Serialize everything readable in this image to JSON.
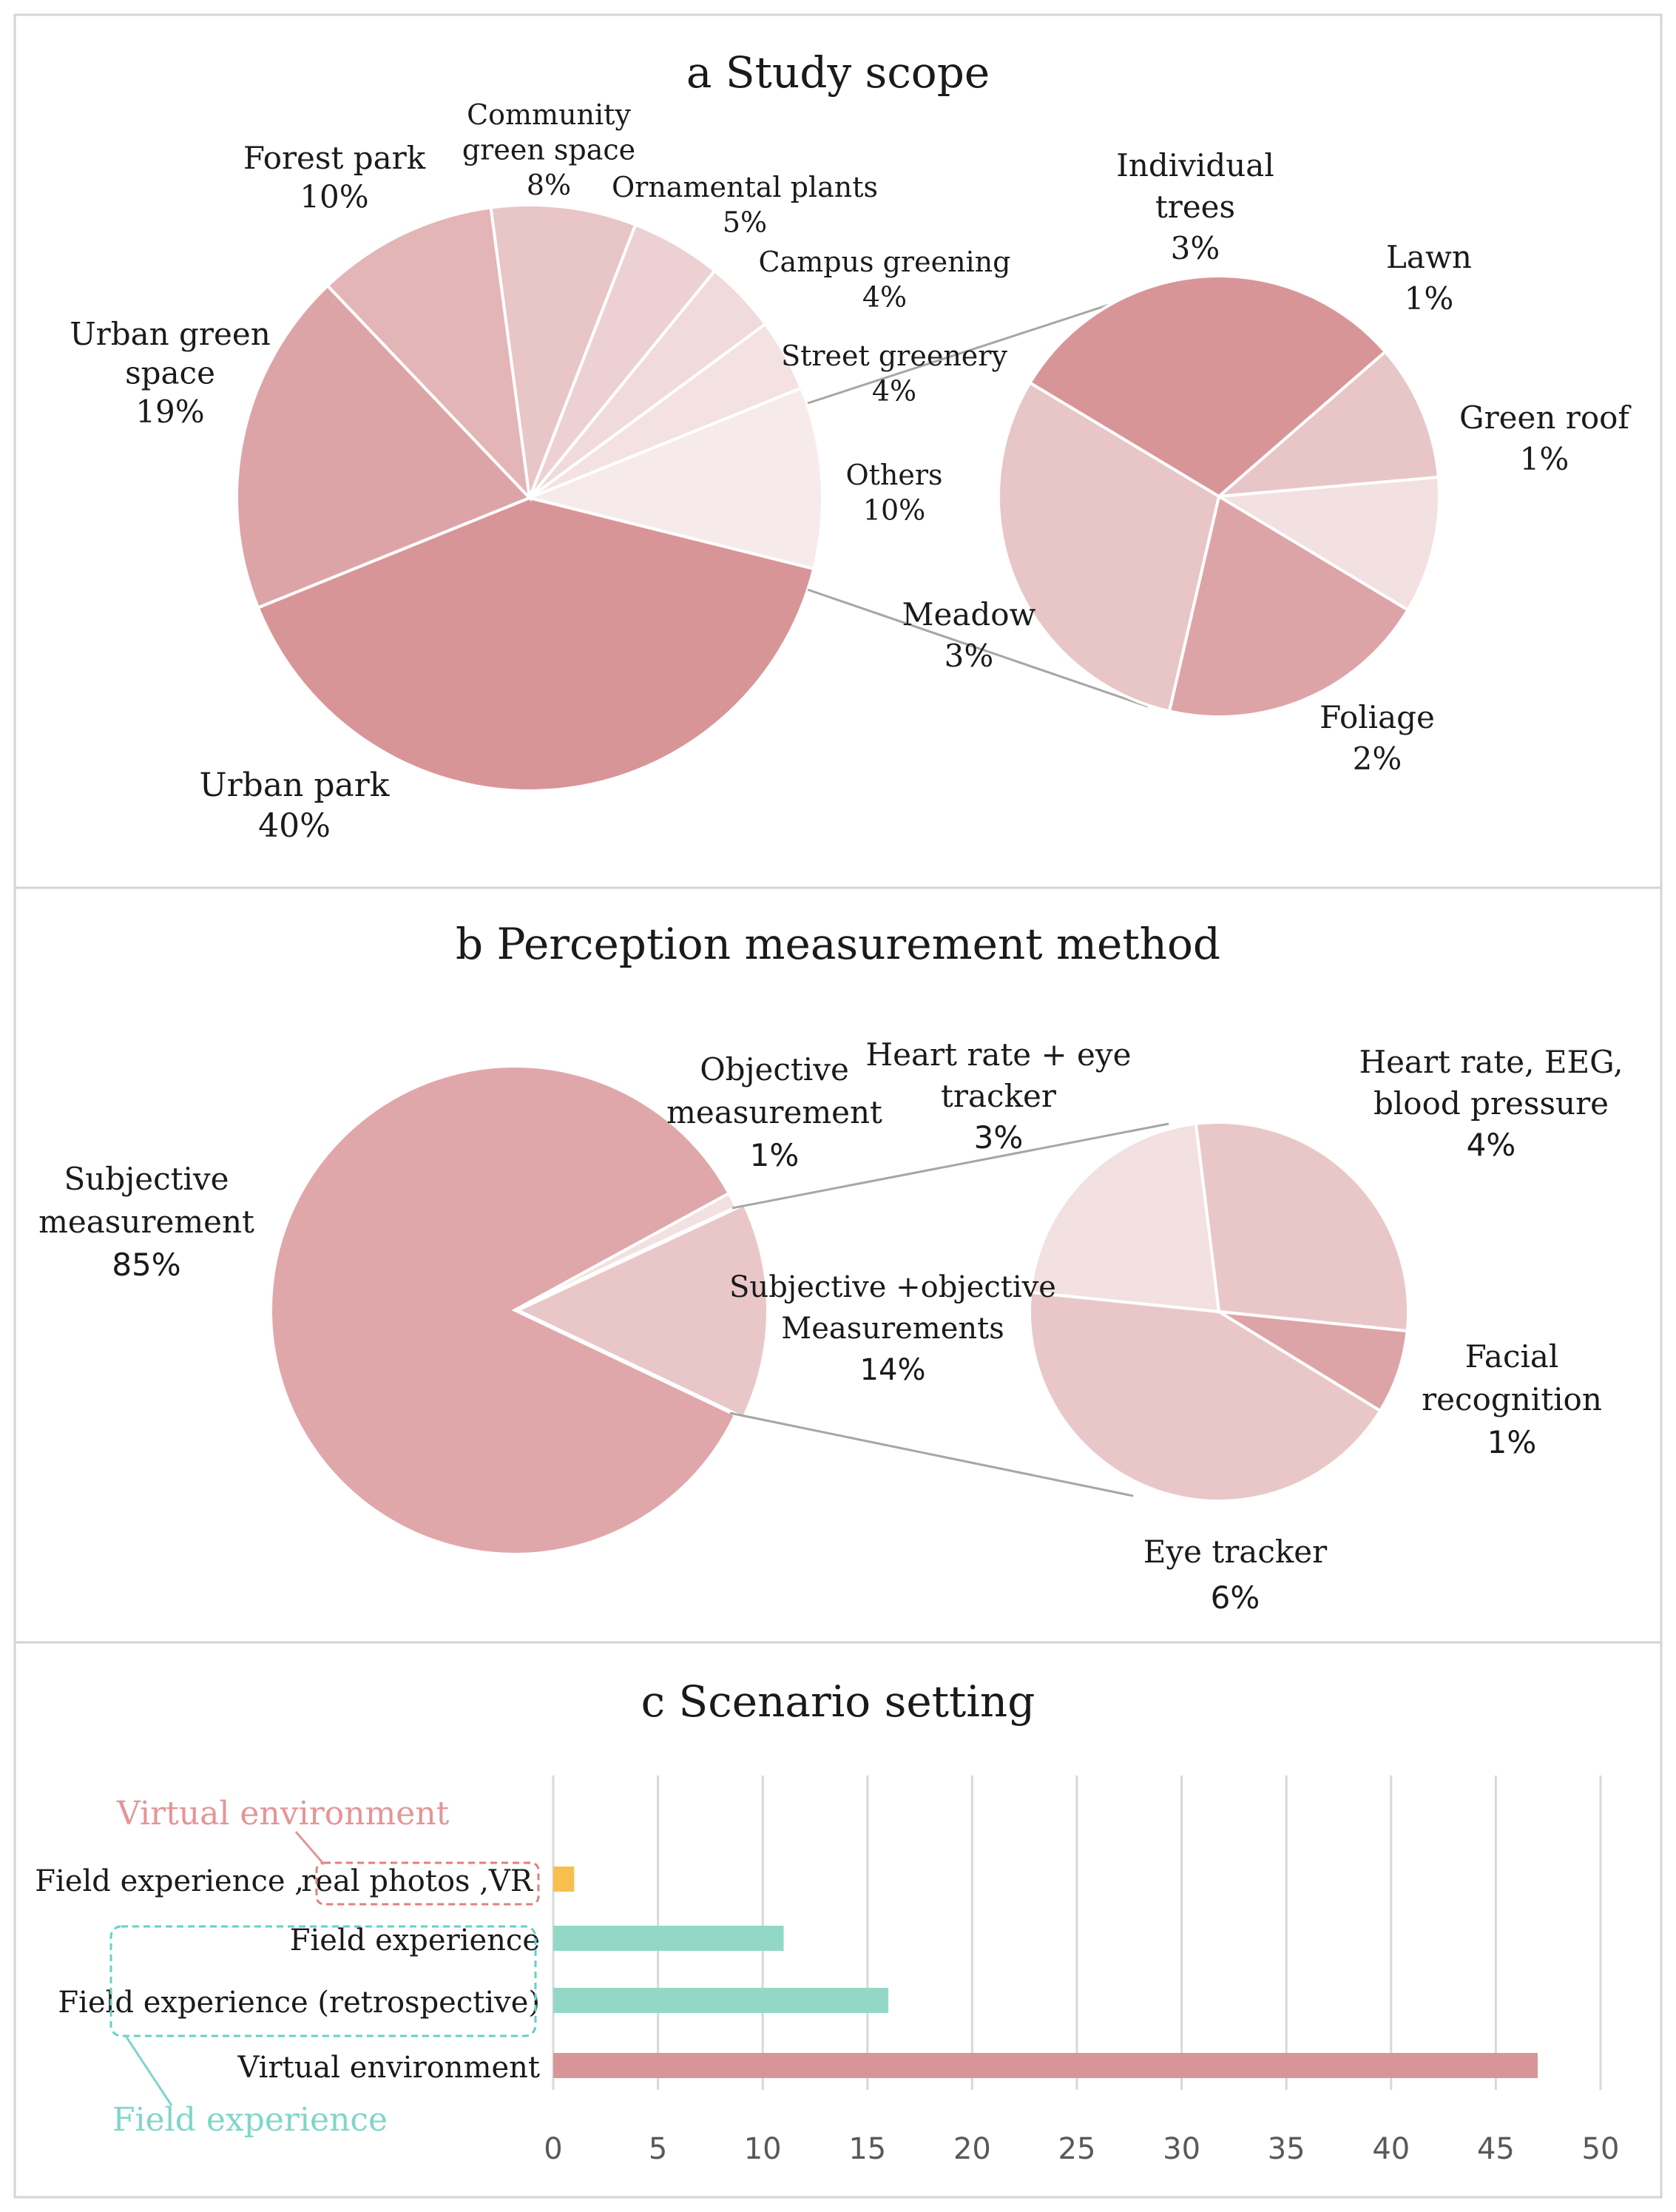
{
  "chart_data": [
    {
      "type": "pie",
      "title": "a Study scope",
      "slices": [
        {
          "label": [
            "Urban park"
          ],
          "value": "40%",
          "pct": 40,
          "color": "#d89598"
        },
        {
          "label": [
            "Urban green",
            "space"
          ],
          "value": "19%",
          "pct": 19,
          "color": "#dda4a7"
        },
        {
          "label": [
            "Forest park"
          ],
          "value": "10%",
          "pct": 10,
          "color": "#e3b5b7"
        },
        {
          "label": [
            "Community",
            "green space"
          ],
          "value": "8%",
          "pct": 8,
          "color": "#e8c5c6"
        },
        {
          "label": [
            "Ornamental plants"
          ],
          "value": "5%",
          "pct": 5,
          "color": "#edd1d2"
        },
        {
          "label": [
            "Campus greening"
          ],
          "value": "4%",
          "pct": 4,
          "color": "#f1dadb"
        },
        {
          "label": [
            "Street greenery"
          ],
          "value": "4%",
          "pct": 4,
          "color": "#f4e2e3"
        },
        {
          "label": [
            "Others"
          ],
          "value": "10%",
          "pct": 10,
          "color": "#f7eaea"
        }
      ],
      "breakdown": [
        {
          "label": [
            "Individual",
            "trees"
          ],
          "value": "3%",
          "pct": 3,
          "color": "#d89598"
        },
        {
          "label": [
            "Lawn"
          ],
          "value": "1%",
          "pct": 1,
          "color": "#e8c5c6"
        },
        {
          "label": [
            "Green roof"
          ],
          "value": "1%",
          "pct": 1,
          "color": "#f3e0e0"
        },
        {
          "label": [
            "Foliage"
          ],
          "value": "2%",
          "pct": 2,
          "color": "#dda4a7"
        },
        {
          "label": [
            "Meadow"
          ],
          "value": "3%",
          "pct": 3,
          "color": "#e8c5c6"
        }
      ]
    },
    {
      "type": "pie",
      "title": "b Perception measurement method",
      "slices": [
        {
          "label": [
            "Subjective",
            "measurement"
          ],
          "value": "85%",
          "pct": 85,
          "color": "#e0a7aa"
        },
        {
          "label": [
            "Objective",
            "measurement"
          ],
          "value": "1%",
          "pct": 1,
          "color": "#f3e0e0"
        },
        {
          "label": [
            "Subjective +objective",
            "Measurements"
          ],
          "value": "14%",
          "pct": 14,
          "color": "#e9c7c8"
        }
      ],
      "breakdown": [
        {
          "label": [
            "Heart rate, EEG,",
            "blood pressure"
          ],
          "value": "4%",
          "pct": 4,
          "color": "#e9c7c8"
        },
        {
          "label": [
            "Facial",
            "recognition"
          ],
          "value": "1%",
          "pct": 1,
          "color": "#dda4a7"
        },
        {
          "label": [
            "Eye tracker"
          ],
          "value": "6%",
          "pct": 6,
          "color": "#e9c7c8"
        },
        {
          "label": [
            "Heart rate + eye",
            "tracker"
          ],
          "value": "3%",
          "pct": 3,
          "color": "#f3e0e0"
        }
      ]
    },
    {
      "type": "bar",
      "orientation": "horizontal",
      "title": "c Scenario setting",
      "categories": [
        "Field experience , real photos ,VR",
        "Field experience",
        "Field experience (retrospective)",
        "Virtual environment"
      ],
      "category_parts": {
        "first_prefix": "Field experience ,",
        "first_boxed": "real photos ,VR"
      },
      "values": [
        1,
        11,
        16,
        47
      ],
      "colors": [
        "#f7bf4e",
        "#93d8c7",
        "#93d8c7",
        "#d89598"
      ],
      "xlim": [
        0,
        50
      ],
      "xticks": [
        0,
        5,
        10,
        15,
        20,
        25,
        30,
        35,
        40,
        45,
        50
      ],
      "grid": true,
      "annotations": [
        {
          "text": "Virtual environment",
          "color": "#e49597"
        },
        {
          "text": "Field experience",
          "color": "#7fd6ca"
        }
      ]
    }
  ]
}
